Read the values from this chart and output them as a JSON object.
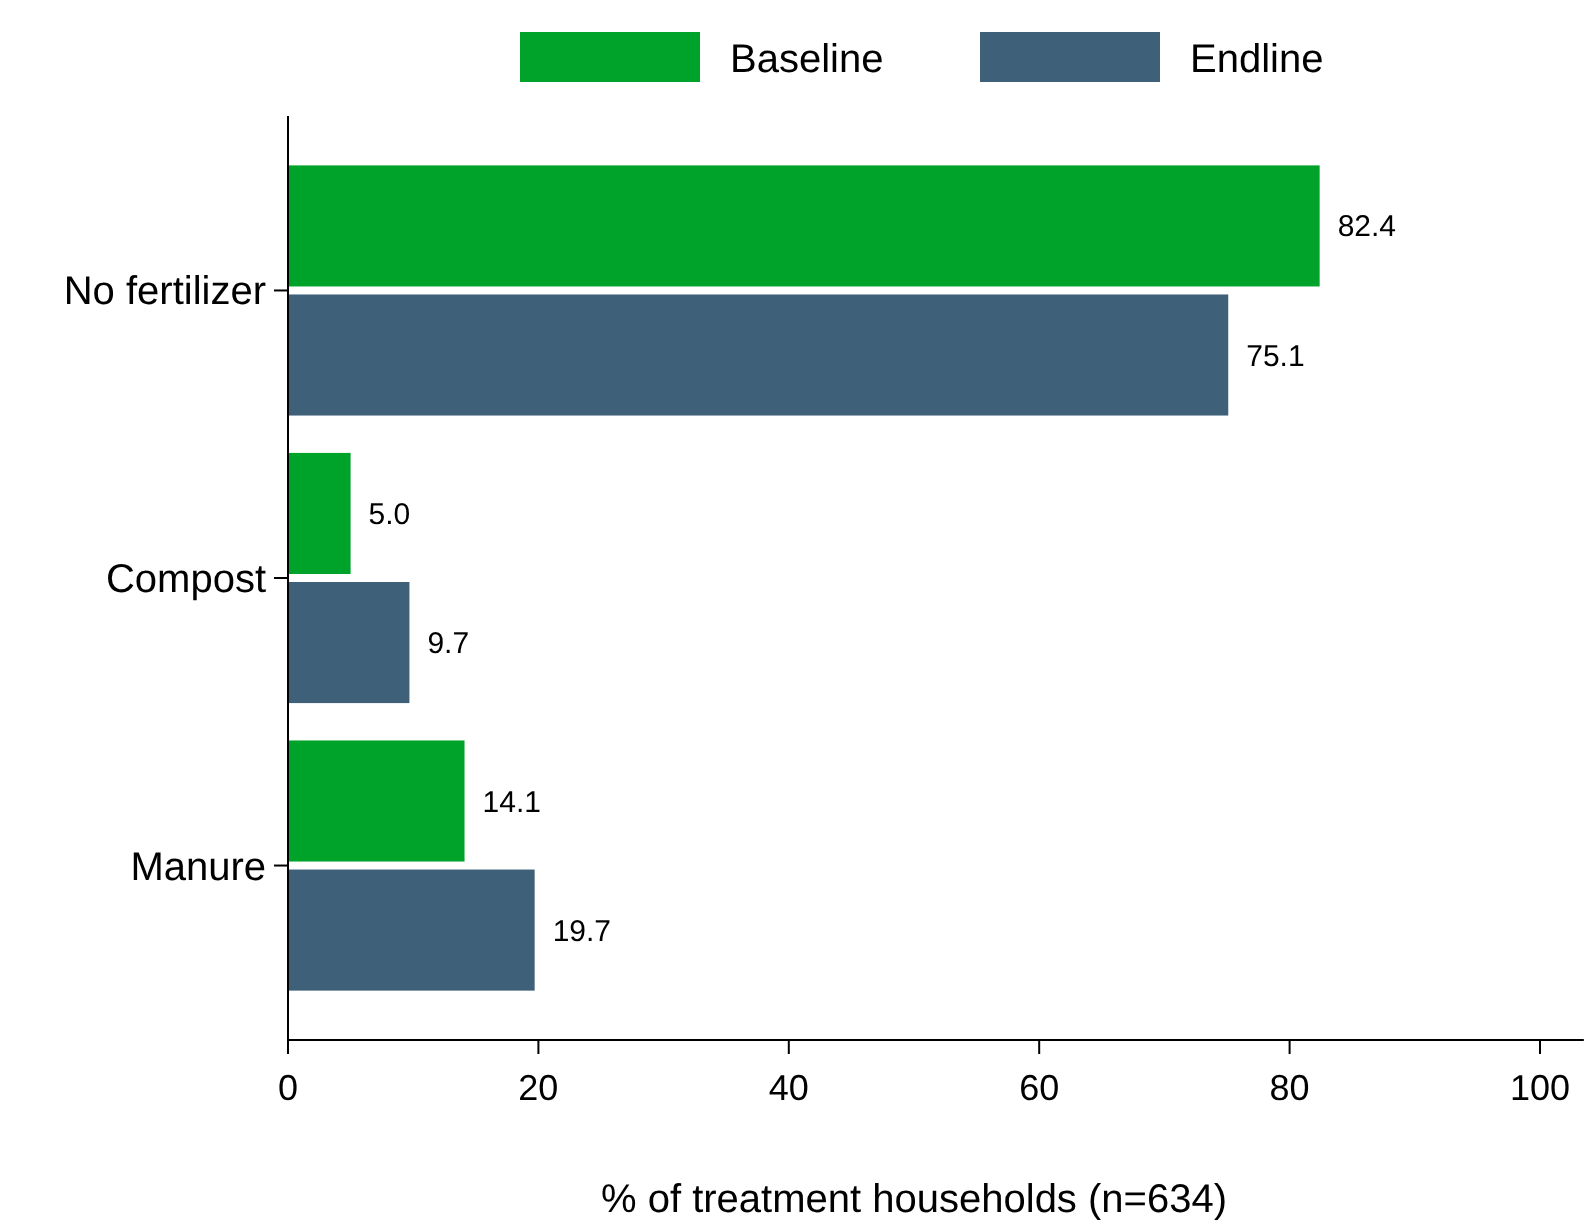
{
  "chart_data": {
    "type": "bar",
    "orientation": "horizontal",
    "categories": [
      "No fertilizer",
      "Compost",
      "Manure"
    ],
    "series": [
      {
        "name": "Baseline",
        "color": "#00a32a",
        "values": [
          82.4,
          5.0,
          14.1
        ],
        "value_labels": [
          "82.4",
          "5.0",
          "14.1"
        ]
      },
      {
        "name": "Endline",
        "color": "#3f6079",
        "values": [
          75.1,
          9.7,
          19.7
        ],
        "value_labels": [
          "75.1",
          "9.7",
          "19.7"
        ]
      }
    ],
    "xlabel": "% of treatment households (n=634)",
    "xlim": [
      0,
      103.5
    ],
    "xticks": [
      0,
      20,
      40,
      60,
      80,
      100
    ],
    "grid": false,
    "legend": "top"
  }
}
